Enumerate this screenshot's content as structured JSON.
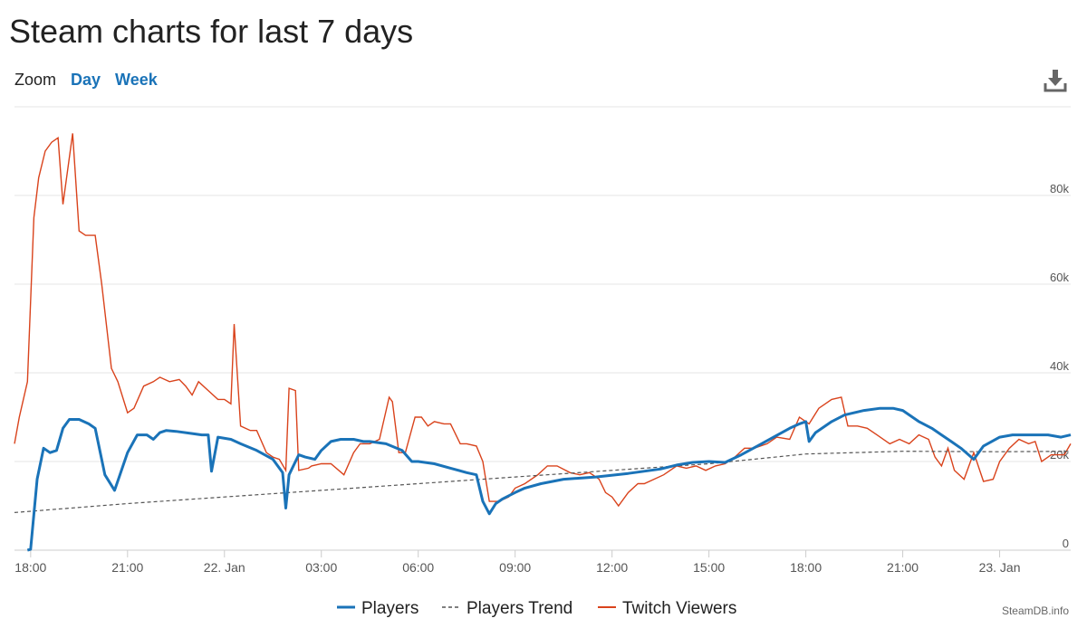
{
  "title": "Steam charts for last 7 days",
  "zoom": {
    "label": "Zoom",
    "buttons": [
      "Day",
      "Week"
    ]
  },
  "icons": {
    "download": "download-icon"
  },
  "credit": "SteamDB.info",
  "colors": {
    "players": "#1a73b8",
    "trend": "#555555",
    "twitch": "#d9431c",
    "grid": "#e6e6e6"
  },
  "chart_data": {
    "type": "line",
    "x_unit": "hours",
    "x_ticks": [
      {
        "x": 0,
        "label": "18:00"
      },
      {
        "x": 3,
        "label": "21:00"
      },
      {
        "x": 6,
        "label": "22. Jan"
      },
      {
        "x": 9,
        "label": "03:00"
      },
      {
        "x": 12,
        "label": "06:00"
      },
      {
        "x": 15,
        "label": "09:00"
      },
      {
        "x": 18,
        "label": "12:00"
      },
      {
        "x": 21,
        "label": "15:00"
      },
      {
        "x": 24,
        "label": "18:00"
      },
      {
        "x": 27,
        "label": "21:00"
      },
      {
        "x": 30,
        "label": "23. Jan"
      }
    ],
    "xlim": [
      -0.5,
      32.2
    ],
    "y_ticks": [
      {
        "y": 0,
        "label": "0"
      },
      {
        "y": 20000,
        "label": "20k"
      },
      {
        "y": 40000,
        "label": "40k"
      },
      {
        "y": 60000,
        "label": "60k"
      },
      {
        "y": 80000,
        "label": "80k"
      }
    ],
    "ylim": [
      0,
      100000
    ],
    "legend": {
      "position": "bottom-center",
      "entries": [
        "Players",
        "Players Trend",
        "Twitch Viewers"
      ]
    },
    "series": [
      {
        "name": "Players",
        "x": [
          -0.1,
          0.0,
          0.2,
          0.4,
          0.6,
          0.8,
          1.0,
          1.2,
          1.5,
          1.8,
          2.0,
          2.3,
          2.6,
          3.0,
          3.3,
          3.6,
          3.8,
          4.0,
          4.2,
          4.5,
          5.0,
          5.3,
          5.5,
          5.6,
          5.8,
          6.2,
          6.5,
          7.0,
          7.5,
          7.8,
          7.9,
          8.0,
          8.3,
          8.5,
          8.8,
          9.0,
          9.3,
          9.6,
          10.0,
          10.3,
          10.5,
          11.0,
          11.5,
          11.8,
          12.0,
          12.2,
          12.5,
          13.0,
          13.5,
          13.8,
          14.0,
          14.2,
          14.4,
          14.6,
          15.0,
          15.3,
          15.8,
          16.5,
          17.5,
          18.5,
          19.5,
          20.0,
          20.5,
          21.0,
          21.5,
          22.0,
          22.5,
          23.0,
          23.5,
          23.8,
          24.0,
          24.1,
          24.3,
          24.8,
          25.2,
          25.8,
          26.3,
          26.7,
          27.0,
          27.5,
          27.9,
          28.2,
          28.5,
          28.8,
          29.2,
          29.5,
          30.0,
          30.4,
          30.7,
          31.0,
          31.5,
          31.9,
          32.2
        ],
        "y": [
          0,
          200,
          16000,
          23000,
          22000,
          22500,
          27500,
          29500,
          29500,
          28500,
          27500,
          17000,
          13500,
          22000,
          26000,
          26000,
          25000,
          26500,
          27000,
          26800,
          26300,
          26000,
          26000,
          17800,
          25500,
          25000,
          24000,
          22500,
          20500,
          17500,
          9500,
          17000,
          21500,
          21000,
          20500,
          22500,
          24500,
          25000,
          25000,
          24500,
          24500,
          24000,
          22500,
          20000,
          20000,
          19800,
          19500,
          18500,
          17500,
          17000,
          11000,
          8200,
          10500,
          11500,
          13000,
          14000,
          15000,
          16000,
          16500,
          17300,
          18300,
          19200,
          19800,
          20000,
          19800,
          21500,
          23500,
          25500,
          27500,
          28500,
          29000,
          24500,
          26500,
          29000,
          30500,
          31500,
          32000,
          32000,
          31500,
          29000,
          27500,
          26000,
          24500,
          23000,
          20500,
          23500,
          25500,
          26000,
          26000,
          26000,
          26000,
          25500,
          26000
        ]
      },
      {
        "name": "Players Trend",
        "x": [
          -0.5,
          3,
          6,
          9,
          12,
          15,
          18,
          21,
          24,
          27,
          30,
          32.2
        ],
        "y": [
          8500,
          10500,
          12000,
          13500,
          15000,
          16500,
          18000,
          19500,
          21700,
          22300,
          22200,
          22300
        ]
      },
      {
        "name": "Twitch Viewers",
        "x": [
          -0.5,
          -0.35,
          -0.1,
          0.1,
          0.25,
          0.45,
          0.65,
          0.85,
          1.0,
          1.3,
          1.5,
          1.7,
          2.0,
          2.2,
          2.5,
          2.7,
          3.0,
          3.2,
          3.5,
          3.8,
          4.0,
          4.3,
          4.6,
          4.8,
          5.0,
          5.2,
          5.5,
          5.8,
          6.0,
          6.2,
          6.3,
          6.5,
          6.8,
          7.0,
          7.3,
          7.5,
          7.7,
          7.9,
          8.0,
          8.2,
          8.3,
          8.6,
          8.7,
          9.0,
          9.3,
          9.7,
          10.0,
          10.2,
          10.5,
          10.8,
          11.1,
          11.2,
          11.4,
          11.6,
          11.9,
          12.1,
          12.3,
          12.5,
          12.8,
          13.0,
          13.3,
          13.5,
          13.8,
          14.0,
          14.2,
          14.5,
          14.8,
          15.0,
          15.3,
          15.7,
          16.0,
          16.3,
          16.7,
          17.0,
          17.3,
          17.6,
          17.8,
          18.0,
          18.2,
          18.5,
          18.8,
          19.0,
          19.3,
          19.6,
          20.0,
          20.3,
          20.6,
          20.9,
          21.2,
          21.5,
          21.8,
          22.1,
          22.4,
          22.8,
          23.1,
          23.5,
          23.8,
          24.1,
          24.4,
          24.8,
          25.1,
          25.3,
          25.6,
          25.9,
          26.2,
          26.6,
          26.9,
          27.2,
          27.5,
          27.8,
          28.0,
          28.2,
          28.4,
          28.6,
          28.9,
          29.2,
          29.5,
          29.8,
          30.0,
          30.3,
          30.6,
          30.9,
          31.1,
          31.3,
          31.6,
          32.0,
          32.2
        ],
        "y": [
          24000,
          30000,
          38000,
          75000,
          84000,
          90000,
          92000,
          93000,
          78000,
          94000,
          72000,
          71000,
          71000,
          60000,
          41000,
          38000,
          31000,
          32000,
          37000,
          38000,
          39000,
          38000,
          38500,
          37000,
          35000,
          38000,
          36000,
          34000,
          34000,
          33000,
          51000,
          28000,
          27000,
          27000,
          22000,
          21000,
          20500,
          18000,
          36500,
          36000,
          18000,
          18500,
          19000,
          19500,
          19500,
          17000,
          22000,
          24000,
          24000,
          25000,
          34500,
          33500,
          22000,
          22000,
          30000,
          30000,
          28000,
          29000,
          28500,
          28500,
          24000,
          24000,
          23500,
          20000,
          11000,
          11000,
          12000,
          14000,
          15000,
          17000,
          19000,
          19000,
          17500,
          17000,
          17500,
          16000,
          13000,
          12000,
          10000,
          13000,
          15000,
          15000,
          16000,
          17000,
          19000,
          18500,
          19000,
          18000,
          19000,
          19500,
          21000,
          23000,
          23000,
          24000,
          25500,
          25000,
          30000,
          28500,
          32000,
          34000,
          34500,
          28000,
          28000,
          27500,
          26000,
          24000,
          25000,
          24000,
          26000,
          25000,
          21000,
          19000,
          23000,
          18000,
          16000,
          22000,
          15500,
          16000,
          20000,
          23000,
          25000,
          24000,
          24500,
          20000,
          21500,
          21500,
          24000
        ]
      }
    ]
  }
}
